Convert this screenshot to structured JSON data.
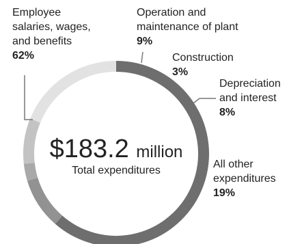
{
  "chart_data": {
    "type": "pie",
    "style": "donut",
    "center": {
      "value": "$183.2",
      "unit": "million",
      "label": "Total expenditures"
    },
    "slices": [
      {
        "label": "Employee\nsalaries, wages,\nand benefits",
        "value": 62,
        "display": "62%",
        "color": "#6e6e6e"
      },
      {
        "label": "Operation and\nmaintenance of plant",
        "value": 9,
        "display": "9%",
        "color": "#929292"
      },
      {
        "label": "Construction",
        "value": 3,
        "display": "3%",
        "color": "#a9a9a9"
      },
      {
        "label": "Depreciation\nand interest",
        "value": 8,
        "display": "8%",
        "color": "#c3c3c3"
      },
      {
        "label": "All other\nexpenditures",
        "value": 19,
        "display": "19%",
        "color": "#e2e2e2"
      }
    ],
    "start_angle_deg": 0,
    "direction": "clockwise"
  }
}
